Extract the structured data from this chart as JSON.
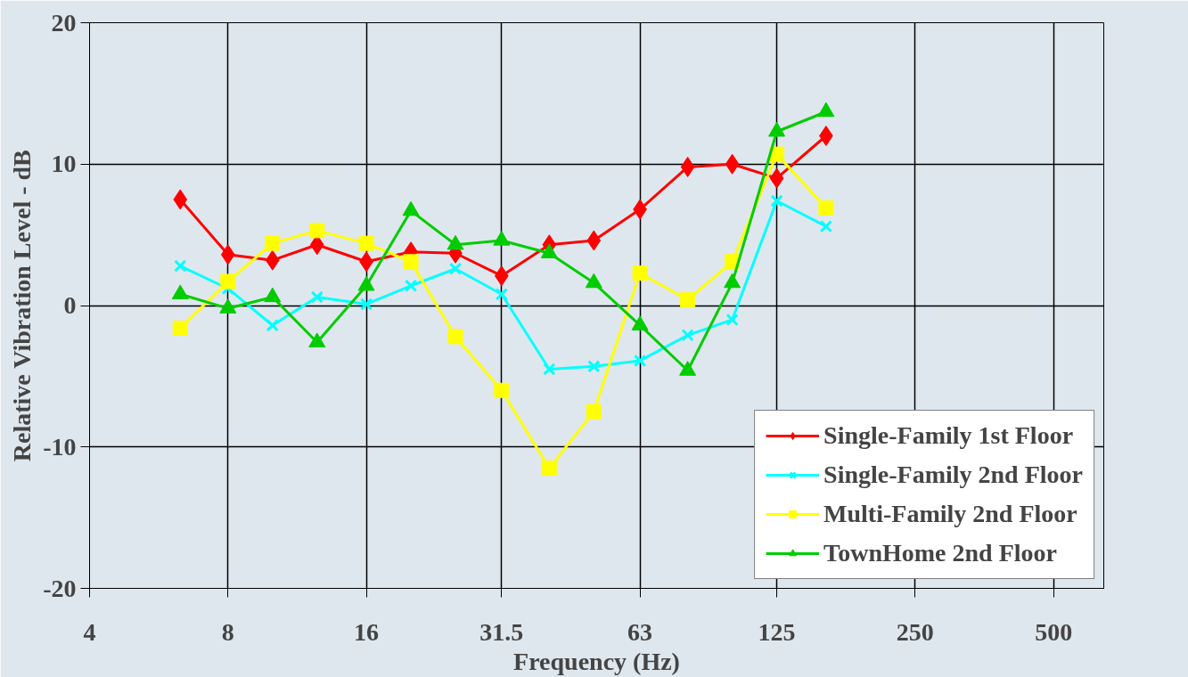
{
  "chart_data": {
    "type": "line",
    "xlabel": "Frequency (Hz)",
    "ylabel": "Relative Vibration Level - dB",
    "x": [
      6.3,
      8,
      10,
      12.5,
      16,
      20,
      25,
      31.5,
      40,
      50,
      63,
      80,
      100,
      125,
      160
    ],
    "series": [
      {
        "name": "Single-Family 1st Floor",
        "color": "#ff0000",
        "marker": "diamond",
        "values": [
          7.5,
          3.6,
          3.2,
          4.3,
          3.1,
          3.8,
          3.7,
          2.1,
          4.3,
          4.6,
          6.8,
          9.8,
          10.0,
          9.0,
          12.0
        ]
      },
      {
        "name": "Single-Family 2nd Floor",
        "color": "#00ffff",
        "marker": "cross",
        "values": [
          2.8,
          1.2,
          -1.4,
          0.6,
          0.1,
          1.4,
          2.6,
          0.8,
          -4.5,
          -4.3,
          -3.9,
          -2.1,
          -1.0,
          7.4,
          5.6
        ]
      },
      {
        "name": "Multi-Family 2nd Floor",
        "color": "#ffff00",
        "marker": "square",
        "values": [
          -1.6,
          1.7,
          4.4,
          5.3,
          4.4,
          3.1,
          -2.2,
          -6.0,
          -11.5,
          -7.5,
          2.3,
          0.4,
          3.1,
          10.7,
          6.9
        ]
      },
      {
        "name": "TownHome 2nd Floor",
        "color": "#00cc00",
        "marker": "triangle",
        "values": [
          0.8,
          -0.2,
          0.6,
          -2.6,
          1.4,
          6.7,
          4.3,
          4.6,
          3.7,
          1.6,
          -1.4,
          -4.6,
          1.6,
          12.3,
          13.7
        ]
      }
    ],
    "log": "x",
    "xlim": [
      4,
      643
    ],
    "xticks": [
      4,
      8,
      16,
      31.5,
      63,
      125,
      250,
      500
    ],
    "ylim": [
      -20,
      20
    ],
    "yticks": [
      -20,
      -10,
      0,
      10,
      20
    ],
    "grid": true,
    "legend": "bottom right",
    "line_style": "solid"
  }
}
